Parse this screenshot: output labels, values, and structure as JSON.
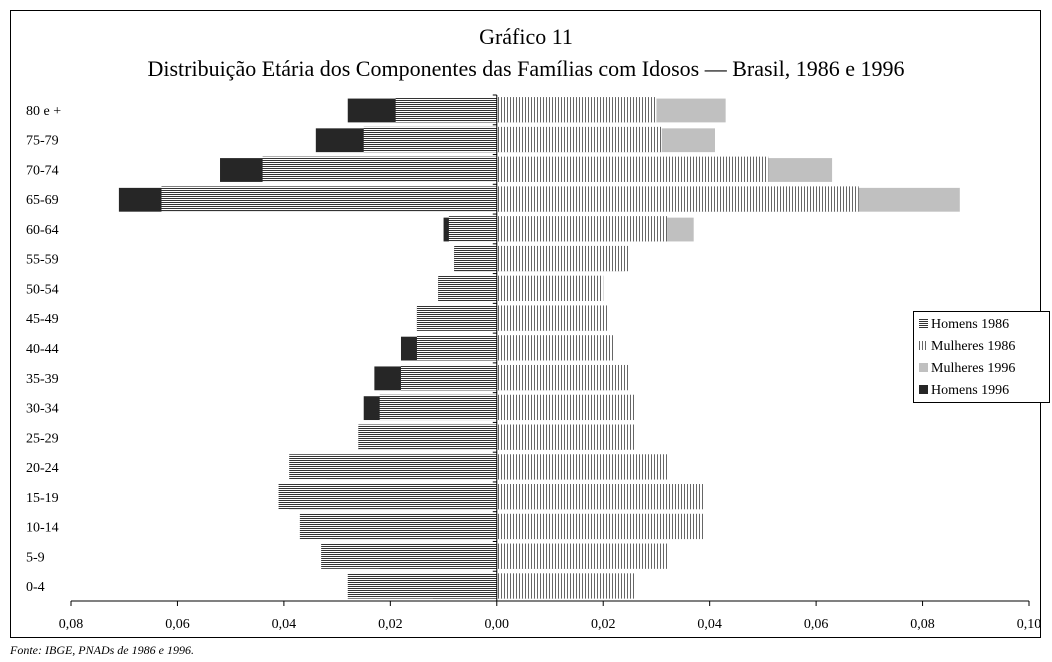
{
  "title_line1": "Gráfico 11",
  "title_line2": "Distribuição Etária dos Componentes das Famílias com Idosos — Brasil, 1986 e 1996",
  "source": "Fonte: IBGE, PNADs de 1986 e 1996.",
  "colors": {
    "homens_1986": "#333333",
    "mulheres_1986": "#666666",
    "mulheres_1996": "#c0c0c0",
    "homens_1996": "#262626"
  },
  "legend": {
    "placement": "right",
    "items": [
      "Homens 1986",
      "Mulheres 1986",
      "Mulheres 1996",
      "Homens 1996"
    ]
  },
  "chart_data": {
    "type": "bar",
    "orientation": "horizontal",
    "subtype": "population pyramid",
    "categories": [
      "80 e +",
      "75-79",
      "70-74",
      "65-69",
      "60-64",
      "55-59",
      "50-54",
      "45-49",
      "40-44",
      "35-39",
      "30-34",
      "25-29",
      "20-24",
      "15-19",
      "10-14",
      "5-9",
      "0-4"
    ],
    "series": [
      {
        "name": "Homens 1986",
        "side": "left",
        "values": [
          0.019,
          0.025,
          0.044,
          0.063,
          0.009,
          0.008,
          0.011,
          0.015,
          0.015,
          0.018,
          0.022,
          0.026,
          0.039,
          0.041,
          0.037,
          0.033,
          0.028
        ]
      },
      {
        "name": "Mulheres 1986",
        "side": "right",
        "values": [
          0.03,
          0.031,
          0.051,
          0.068,
          0.032,
          0.025,
          0.02,
          0.021,
          0.022,
          0.025,
          0.026,
          0.026,
          0.032,
          0.039,
          0.039,
          0.032,
          0.026
        ]
      },
      {
        "name": "Mulheres 1996",
        "side": "right",
        "values": [
          0.043,
          0.041,
          0.063,
          0.087,
          0.037,
          0.024,
          0.019,
          0.02,
          0.021,
          0.023,
          0.024,
          0.024,
          0.024,
          0.033,
          0.032,
          0.021,
          0.012
        ]
      },
      {
        "name": "Homens 1996",
        "side": "left",
        "values": [
          0.028,
          0.034,
          0.052,
          0.071,
          0.01,
          0.008,
          0.011,
          0.015,
          0.018,
          0.023,
          0.025,
          0.026,
          0.032,
          0.039,
          0.031,
          0.022,
          0.012
        ]
      }
    ],
    "xlim": [
      -0.08,
      0.1
    ],
    "x_ticks": [
      "0,08",
      "0,06",
      "0,04",
      "0,02",
      "0,00",
      "0,02",
      "0,04",
      "0,06",
      "0,08",
      "0,10"
    ],
    "grid": false
  }
}
